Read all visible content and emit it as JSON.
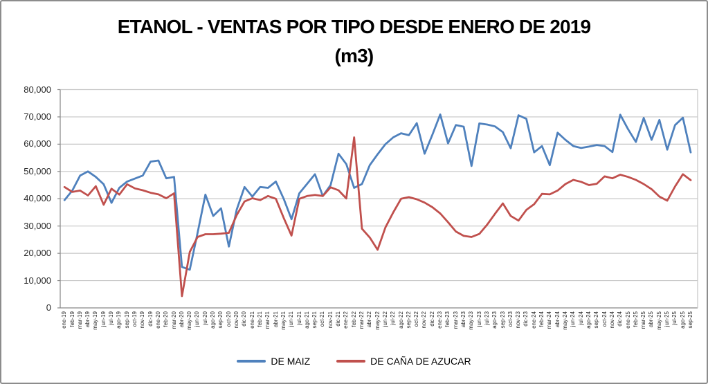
{
  "chart_data": {
    "type": "line",
    "title_line1": "ETANOL - VENTAS POR TIPO DESDE ENERO DE 2019",
    "title_line2": "(m3)",
    "ylim": [
      0,
      80000
    ],
    "ytick_step": 10000,
    "ytick_labels": [
      "0",
      "10,000",
      "20,000",
      "30,000",
      "40,000",
      "50,000",
      "60,000",
      "70,000",
      "80,000"
    ],
    "grid": true,
    "legend_position": "bottom",
    "categories": [
      "ene-19",
      "feb-19",
      "mar-19",
      "abr-19",
      "may-19",
      "jun-19",
      "jul-19",
      "ago-19",
      "sep-19",
      "oct-19",
      "nov-19",
      "dic-19",
      "ene-20",
      "feb-20",
      "mar-20",
      "abr-20",
      "may-20",
      "jun-20",
      "jul-20",
      "ago-20",
      "sep-20",
      "oct-20",
      "nov-20",
      "dic-20",
      "ene-21",
      "feb-21",
      "mar-21",
      "abr-21",
      "may-21",
      "jun-21",
      "jul-21",
      "ago-21",
      "sep-21",
      "oct-21",
      "nov-21",
      "dic-21",
      "ene-22",
      "feb-22",
      "mar-22",
      "abr-22",
      "may-22",
      "jun-22",
      "jul-22",
      "ago-22",
      "sep-22",
      "oct-22",
      "nov-22",
      "dic-22",
      "ene-23",
      "feb-23",
      "mar-23",
      "abr-23",
      "may-23",
      "jun-23",
      "jul-23",
      "ago-23",
      "sep-23",
      "oct-23",
      "nov-23",
      "dic-23",
      "ene-24",
      "feb-24",
      "mar-24",
      "abr-24",
      "may-24",
      "jun-24",
      "jul-24",
      "ago-24",
      "sep-24",
      "oct-24",
      "nov-24",
      "dic-24",
      "ene-25",
      "feb-25",
      "mar-25",
      "abr-25",
      "may-25",
      "jun-25",
      "jul-25",
      "ago-25",
      "sep-25"
    ],
    "series": [
      {
        "name": "DE MAIZ",
        "color": "#4F81BD",
        "values": [
          39500,
          43000,
          48500,
          50000,
          48000,
          45300,
          38500,
          44000,
          46300,
          47400,
          48500,
          53600,
          54000,
          47500,
          48000,
          15000,
          14000,
          27500,
          41500,
          33700,
          36500,
          22500,
          36000,
          44300,
          40800,
          44300,
          44000,
          46300,
          40000,
          32500,
          42000,
          45500,
          49000,
          41000,
          45000,
          56500,
          52700,
          44000,
          45400,
          52300,
          56300,
          60000,
          62500,
          64000,
          63300,
          67700,
          56500,
          63500,
          70900,
          60300,
          67000,
          66400,
          52000,
          67600,
          67200,
          66500,
          64400,
          58500,
          70600,
          69300,
          57000,
          59300,
          52300,
          64200,
          61600,
          59300,
          58600,
          59100,
          59700,
          59300,
          57100,
          70800,
          65500,
          60800,
          69600,
          61600,
          68900,
          58000,
          67000,
          69700,
          57000
        ]
      },
      {
        "name": "DE CAÑA DE AZUCAR",
        "color": "#C0504D",
        "values": [
          44300,
          42500,
          43000,
          41200,
          44600,
          37800,
          43700,
          41500,
          45300,
          43800,
          43100,
          42200,
          41600,
          40200,
          42000,
          4300,
          20500,
          26000,
          27000,
          27000,
          27200,
          27500,
          34000,
          39000,
          40200,
          39500,
          41000,
          40000,
          33000,
          26500,
          40000,
          41000,
          41400,
          41000,
          44200,
          43100,
          40100,
          62500,
          29000,
          25800,
          21300,
          29500,
          35000,
          40000,
          40600,
          39800,
          38600,
          36900,
          34600,
          31400,
          28000,
          26400,
          26000,
          27100,
          30500,
          34500,
          38300,
          33700,
          32000,
          35900,
          38000,
          41800,
          41600,
          43000,
          45400,
          46900,
          46200,
          45000,
          45500,
          48200,
          47500,
          48800,
          48000,
          46900,
          45400,
          43500,
          40800,
          39300,
          44500,
          49000,
          46800
        ]
      }
    ]
  },
  "colors": {
    "background": "#ffffff",
    "frame_border": "#8c8c8c",
    "gridline": "#c6c6c6",
    "axis_line": "#868686",
    "text": "#262626"
  }
}
